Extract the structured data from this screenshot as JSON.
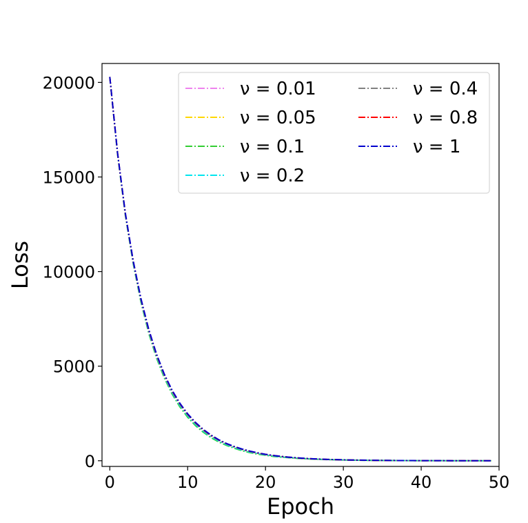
{
  "chart_data": {
    "type": "line",
    "xlabel": "Epoch",
    "ylabel": "Loss",
    "xlim": [
      -1,
      50
    ],
    "ylim": [
      -300,
      21000
    ],
    "xticks": [
      0,
      10,
      20,
      30,
      40,
      50
    ],
    "yticks": [
      0,
      5000,
      10000,
      15000,
      20000
    ],
    "xtick_labels": [
      "0",
      "10",
      "20",
      "30",
      "40",
      "50"
    ],
    "ytick_labels": [
      "0",
      "5000",
      "10000",
      "15000",
      "20000"
    ],
    "grid": false,
    "line_style": "dashdot",
    "legend": {
      "placement": "top-right",
      "columns": 2
    },
    "x": [
      0,
      1,
      2,
      3,
      4,
      5,
      6,
      7,
      8,
      9,
      10,
      11,
      12,
      13,
      14,
      15,
      16,
      17,
      18,
      19,
      20,
      21,
      22,
      23,
      24,
      25,
      26,
      27,
      28,
      29,
      30,
      31,
      32,
      33,
      34,
      35,
      36,
      37,
      38,
      39,
      40,
      41,
      42,
      43,
      44,
      45,
      46,
      47,
      48,
      49
    ],
    "series": [
      {
        "name": "ν = 0.01",
        "color": "#ee82ee",
        "values": [
          20290,
          16220,
          13010,
          10490,
          8470,
          6840,
          5530,
          4480,
          3630,
          2950,
          2400,
          1950,
          1590,
          1300,
          1060,
          870,
          710,
          580,
          470,
          390,
          320,
          260,
          210,
          170,
          140,
          115,
          95,
          78,
          64,
          52,
          43,
          35,
          29,
          24,
          20,
          17,
          14,
          12,
          10,
          8,
          7,
          6,
          5,
          4,
          3,
          3,
          2,
          2,
          2,
          2
        ]
      },
      {
        "name": "ν = 0.05",
        "color": "#ffd700",
        "values": [
          20290,
          16210,
          13000,
          10480,
          8460,
          6830,
          5520,
          4470,
          3620,
          2940,
          2390,
          1940,
          1580,
          1290,
          1050,
          860,
          700,
          570,
          470,
          380,
          310,
          250,
          210,
          170,
          140,
          115,
          95,
          78,
          64,
          52,
          43,
          35,
          29,
          24,
          20,
          17,
          14,
          12,
          10,
          8,
          7,
          6,
          5,
          4,
          3,
          3,
          2,
          2,
          2,
          2
        ]
      },
      {
        "name": "ν = 0.1",
        "color": "#32cd32",
        "values": [
          20290,
          16180,
          12960,
          10420,
          8380,
          6740,
          5430,
          4380,
          3530,
          2850,
          2300,
          1860,
          1510,
          1220,
          990,
          810,
          660,
          530,
          430,
          350,
          290,
          230,
          190,
          160,
          130,
          105,
          86,
          70,
          57,
          47,
          38,
          31,
          26,
          21,
          17,
          14,
          12,
          10,
          8,
          7,
          6,
          5,
          4,
          3,
          3,
          2,
          2,
          2,
          2,
          2
        ]
      },
      {
        "name": "ν = 0.2",
        "color": "#00e5ee",
        "values": [
          20290,
          16200,
          12990,
          10460,
          8440,
          6810,
          5500,
          4450,
          3600,
          2920,
          2370,
          1920,
          1560,
          1270,
          1040,
          850,
          690,
          560,
          460,
          380,
          310,
          250,
          200,
          170,
          140,
          115,
          95,
          78,
          64,
          52,
          43,
          35,
          29,
          24,
          20,
          17,
          14,
          12,
          10,
          8,
          7,
          6,
          5,
          4,
          3,
          3,
          2,
          2,
          2,
          2
        ]
      },
      {
        "name": "ν = 0.4",
        "color": "#808080",
        "values": [
          20290,
          16230,
          13030,
          10520,
          8500,
          6870,
          5560,
          4510,
          3660,
          2980,
          2430,
          1980,
          1610,
          1320,
          1080,
          890,
          730,
          600,
          490,
          400,
          330,
          270,
          220,
          180,
          150,
          120,
          100,
          82,
          67,
          55,
          45,
          37,
          30,
          25,
          21,
          17,
          14,
          12,
          10,
          8,
          7,
          6,
          5,
          4,
          3,
          3,
          2,
          2,
          2,
          2
        ]
      },
      {
        "name": "ν = 0.8",
        "color": "#ff0000",
        "values": [
          20290,
          16250,
          13060,
          10560,
          8550,
          6920,
          5610,
          4560,
          3700,
          3020,
          2460,
          2010,
          1640,
          1340,
          1100,
          900,
          740,
          610,
          500,
          410,
          340,
          280,
          230,
          190,
          150,
          125,
          103,
          85,
          70,
          57,
          47,
          38,
          31,
          26,
          21,
          17,
          14,
          12,
          10,
          8,
          7,
          6,
          5,
          4,
          3,
          3,
          2,
          2,
          2,
          2
        ]
      },
      {
        "name": "ν = 1",
        "color": "#0000cd",
        "values": [
          20290,
          16260,
          13080,
          10580,
          8570,
          6950,
          5640,
          4580,
          3730,
          3040,
          2480,
          2030,
          1660,
          1360,
          1110,
          910,
          750,
          620,
          510,
          420,
          340,
          280,
          230,
          190,
          155,
          128,
          105,
          86,
          71,
          58,
          48,
          39,
          32,
          26,
          22,
          18,
          15,
          12,
          10,
          8,
          7,
          6,
          5,
          4,
          3,
          3,
          2,
          2,
          2,
          2
        ]
      }
    ]
  }
}
